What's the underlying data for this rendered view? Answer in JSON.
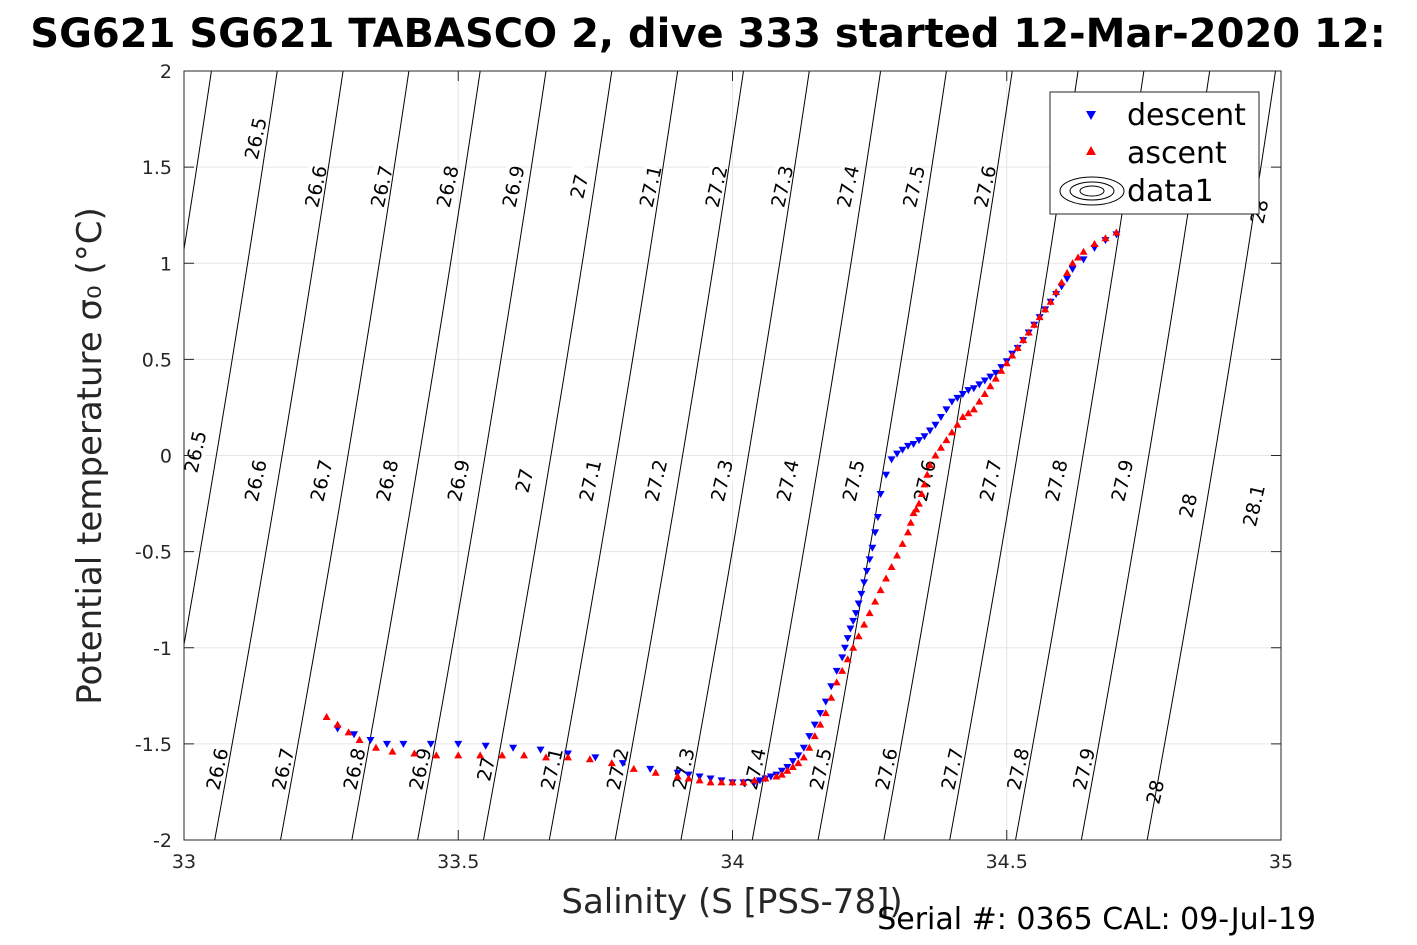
{
  "chart_data": {
    "type": "scatter",
    "title": "SG621 SG621 TABASCO 2, dive 333 started 12-Mar-2020 12:",
    "xlabel": "Salinity (S [PSS-78])",
    "ylabel": "Potential temperature σ₀ (°C)",
    "footer": "Serial #: 0365  CAL: 09-Jul-19",
    "xlim": [
      33,
      35
    ],
    "ylim": [
      -2,
      2
    ],
    "xticks": [
      33,
      33.5,
      34,
      34.5,
      35
    ],
    "yticks": [
      -2,
      -1.5,
      -1,
      -0.5,
      0,
      0.5,
      1,
      1.5,
      2
    ],
    "xtick_labels": [
      "33",
      "33.5",
      "34",
      "34.5",
      "35"
    ],
    "ytick_labels": [
      "-2",
      "-1.5",
      "-1",
      "-0.5",
      "0",
      "0.5",
      "1",
      "1.5",
      "2"
    ],
    "grid": true,
    "legend_position": "top-right",
    "legend": [
      {
        "label": "descent",
        "marker": "triangle-down",
        "color": "#0000ff"
      },
      {
        "label": "ascent",
        "marker": "triangle-up",
        "color": "#ff0000"
      },
      {
        "label": "data1",
        "marker": "contour",
        "color": "#000000"
      }
    ],
    "density_contours": [
      {
        "value": 26.5,
        "label": "26.5",
        "top_x": 33.05,
        "labels_at": [
          [
            33.13,
            1.65
          ],
          [
            33.02,
            0.02
          ]
        ]
      },
      {
        "value": 26.6,
        "label": "26.6",
        "top_x": 33.17,
        "labels_at": [
          [
            33.24,
            1.4
          ],
          [
            33.13,
            -0.13
          ],
          [
            33.06,
            -1.63
          ]
        ]
      },
      {
        "value": 26.7,
        "label": "26.7",
        "top_x": 33.29,
        "labels_at": [
          [
            33.36,
            1.4
          ],
          [
            33.25,
            -0.13
          ],
          [
            33.18,
            -1.63
          ]
        ]
      },
      {
        "value": 26.8,
        "label": "26.8",
        "top_x": 33.41,
        "labels_at": [
          [
            33.48,
            1.4
          ],
          [
            33.37,
            -0.13
          ],
          [
            33.31,
            -1.63
          ]
        ]
      },
      {
        "value": 26.9,
        "label": "26.9",
        "top_x": 33.54,
        "labels_at": [
          [
            33.6,
            1.4
          ],
          [
            33.5,
            -0.13
          ],
          [
            33.43,
            -1.63
          ]
        ]
      },
      {
        "value": 27,
        "label": "27",
        "top_x": 33.66,
        "labels_at": [
          [
            33.72,
            1.4
          ],
          [
            33.62,
            -0.13
          ],
          [
            33.55,
            -1.63
          ]
        ]
      },
      {
        "value": 27.1,
        "label": "27.1",
        "top_x": 33.78,
        "labels_at": [
          [
            33.85,
            1.4
          ],
          [
            33.74,
            -0.13
          ],
          [
            33.67,
            -1.63
          ]
        ]
      },
      {
        "value": 27.2,
        "label": "27.2",
        "top_x": 33.9,
        "labels_at": [
          [
            33.97,
            1.4
          ],
          [
            33.86,
            -0.13
          ],
          [
            33.79,
            -1.63
          ]
        ]
      },
      {
        "value": 27.3,
        "label": "27.3",
        "top_x": 34.02,
        "labels_at": [
          [
            34.09,
            1.4
          ],
          [
            33.98,
            -0.13
          ],
          [
            33.91,
            -1.63
          ]
        ]
      },
      {
        "value": 27.4,
        "label": "27.4",
        "top_x": 34.14,
        "labels_at": [
          [
            34.21,
            1.4
          ],
          [
            34.1,
            -0.13
          ],
          [
            34.04,
            -1.63
          ]
        ]
      },
      {
        "value": 27.5,
        "label": "27.5",
        "top_x": 34.27,
        "labels_at": [
          [
            34.33,
            1.4
          ],
          [
            34.22,
            -0.13
          ],
          [
            34.16,
            -1.63
          ]
        ]
      },
      {
        "value": 27.6,
        "label": "27.6",
        "top_x": 34.39,
        "labels_at": [
          [
            34.46,
            1.4
          ],
          [
            34.35,
            -0.13
          ],
          [
            34.28,
            -1.63
          ]
        ]
      },
      {
        "value": 27.7,
        "label": "27.7",
        "top_x": 34.51,
        "labels_at": [
          [
            34.47,
            -0.13
          ],
          [
            34.4,
            -1.63
          ]
        ]
      },
      {
        "value": 27.8,
        "label": "27.8",
        "top_x": 34.63,
        "labels_at": [
          [
            34.59,
            -0.13
          ],
          [
            34.52,
            -1.63
          ]
        ]
      },
      {
        "value": 27.9,
        "label": "27.9",
        "top_x": 34.75,
        "labels_at": [
          [
            34.71,
            -0.13
          ],
          [
            34.64,
            -1.63
          ]
        ]
      },
      {
        "value": 28,
        "label": "28",
        "top_x": 34.87,
        "labels_at": [
          [
            34.96,
            1.27
          ],
          [
            34.83,
            -0.26
          ],
          [
            34.77,
            -1.75
          ]
        ]
      },
      {
        "value": 28.1,
        "label": "28.1",
        "top_x": 34.99,
        "labels_at": [
          [
            34.95,
            -0.26
          ]
        ]
      }
    ],
    "series": [
      {
        "name": "descent",
        "marker": "triangle-down",
        "color": "#0000ff",
        "x": [
          34.7,
          34.68,
          34.66,
          34.64,
          34.62,
          34.61,
          34.6,
          34.59,
          34.58,
          34.57,
          34.56,
          34.55,
          34.54,
          34.53,
          34.52,
          34.51,
          34.5,
          34.49,
          34.48,
          34.47,
          34.46,
          34.45,
          34.44,
          34.43,
          34.42,
          34.41,
          34.4,
          34.39,
          34.38,
          34.37,
          34.36,
          34.35,
          34.34,
          34.33,
          34.32,
          34.31,
          34.3,
          34.29,
          34.28,
          34.27,
          34.265,
          34.26,
          34.255,
          34.25,
          34.245,
          34.24,
          34.235,
          34.23,
          34.225,
          34.22,
          34.215,
          34.21,
          34.205,
          34.2,
          34.19,
          34.18,
          34.17,
          34.16,
          34.15,
          34.14,
          34.13,
          34.12,
          34.11,
          34.1,
          34.09,
          34.08,
          34.07,
          34.06,
          34.05,
          34.04,
          34.02,
          34.0,
          33.98,
          33.96,
          33.94,
          33.92,
          33.9,
          33.85,
          33.8,
          33.75,
          33.7,
          33.65,
          33.6,
          33.55,
          33.5,
          33.45,
          33.4,
          33.37,
          33.34,
          33.31,
          33.28
        ],
        "y": [
          1.15,
          1.12,
          1.08,
          1.02,
          0.97,
          0.92,
          0.88,
          0.84,
          0.8,
          0.76,
          0.72,
          0.68,
          0.64,
          0.6,
          0.56,
          0.53,
          0.49,
          0.46,
          0.43,
          0.41,
          0.39,
          0.37,
          0.35,
          0.34,
          0.32,
          0.3,
          0.28,
          0.24,
          0.2,
          0.16,
          0.13,
          0.1,
          0.08,
          0.06,
          0.05,
          0.03,
          0.01,
          -0.02,
          -0.1,
          -0.2,
          -0.32,
          -0.4,
          -0.48,
          -0.54,
          -0.6,
          -0.66,
          -0.72,
          -0.77,
          -0.82,
          -0.86,
          -0.9,
          -0.95,
          -1.0,
          -1.05,
          -1.12,
          -1.2,
          -1.28,
          -1.34,
          -1.4,
          -1.46,
          -1.52,
          -1.56,
          -1.59,
          -1.62,
          -1.64,
          -1.66,
          -1.67,
          -1.68,
          -1.69,
          -1.7,
          -1.7,
          -1.7,
          -1.69,
          -1.68,
          -1.67,
          -1.66,
          -1.65,
          -1.63,
          -1.6,
          -1.57,
          -1.55,
          -1.53,
          -1.52,
          -1.51,
          -1.5,
          -1.5,
          -1.5,
          -1.5,
          -1.48,
          -1.45,
          -1.42
        ]
      },
      {
        "name": "ascent",
        "marker": "triangle-up",
        "color": "#ff0000",
        "x": [
          34.7,
          34.68,
          34.66,
          34.64,
          34.63,
          34.62,
          34.61,
          34.6,
          34.59,
          34.58,
          34.57,
          34.56,
          34.55,
          34.54,
          34.53,
          34.52,
          34.51,
          34.5,
          34.49,
          34.48,
          34.47,
          34.46,
          34.45,
          34.44,
          34.43,
          34.42,
          34.41,
          34.4,
          34.39,
          34.38,
          34.37,
          34.36,
          34.355,
          34.35,
          34.345,
          34.34,
          34.335,
          34.33,
          34.325,
          34.32,
          34.31,
          34.3,
          34.29,
          34.28,
          34.27,
          34.26,
          34.25,
          34.24,
          34.23,
          34.22,
          34.21,
          34.2,
          34.19,
          34.18,
          34.17,
          34.16,
          34.15,
          34.14,
          34.13,
          34.12,
          34.11,
          34.1,
          34.09,
          34.08,
          34.06,
          34.04,
          34.02,
          34.0,
          33.98,
          33.96,
          33.94,
          33.92,
          33.9,
          33.86,
          33.82,
          33.78,
          33.74,
          33.7,
          33.66,
          33.62,
          33.58,
          33.54,
          33.5,
          33.46,
          33.42,
          33.38,
          33.35,
          33.32,
          33.3,
          33.28,
          33.26
        ],
        "y": [
          1.16,
          1.13,
          1.1,
          1.06,
          1.03,
          1.0,
          0.95,
          0.9,
          0.85,
          0.8,
          0.76,
          0.72,
          0.68,
          0.64,
          0.6,
          0.56,
          0.52,
          0.48,
          0.44,
          0.4,
          0.36,
          0.32,
          0.28,
          0.24,
          0.22,
          0.2,
          0.16,
          0.12,
          0.08,
          0.04,
          0.0,
          -0.05,
          -0.1,
          -0.15,
          -0.2,
          -0.25,
          -0.28,
          -0.3,
          -0.35,
          -0.4,
          -0.46,
          -0.52,
          -0.58,
          -0.64,
          -0.7,
          -0.76,
          -0.82,
          -0.88,
          -0.94,
          -1.0,
          -1.06,
          -1.12,
          -1.18,
          -1.26,
          -1.34,
          -1.4,
          -1.46,
          -1.52,
          -1.57,
          -1.6,
          -1.62,
          -1.64,
          -1.66,
          -1.67,
          -1.68,
          -1.69,
          -1.7,
          -1.7,
          -1.7,
          -1.7,
          -1.69,
          -1.68,
          -1.67,
          -1.65,
          -1.63,
          -1.6,
          -1.58,
          -1.57,
          -1.57,
          -1.56,
          -1.56,
          -1.56,
          -1.56,
          -1.56,
          -1.55,
          -1.54,
          -1.52,
          -1.48,
          -1.44,
          -1.4,
          -1.36
        ]
      }
    ]
  }
}
